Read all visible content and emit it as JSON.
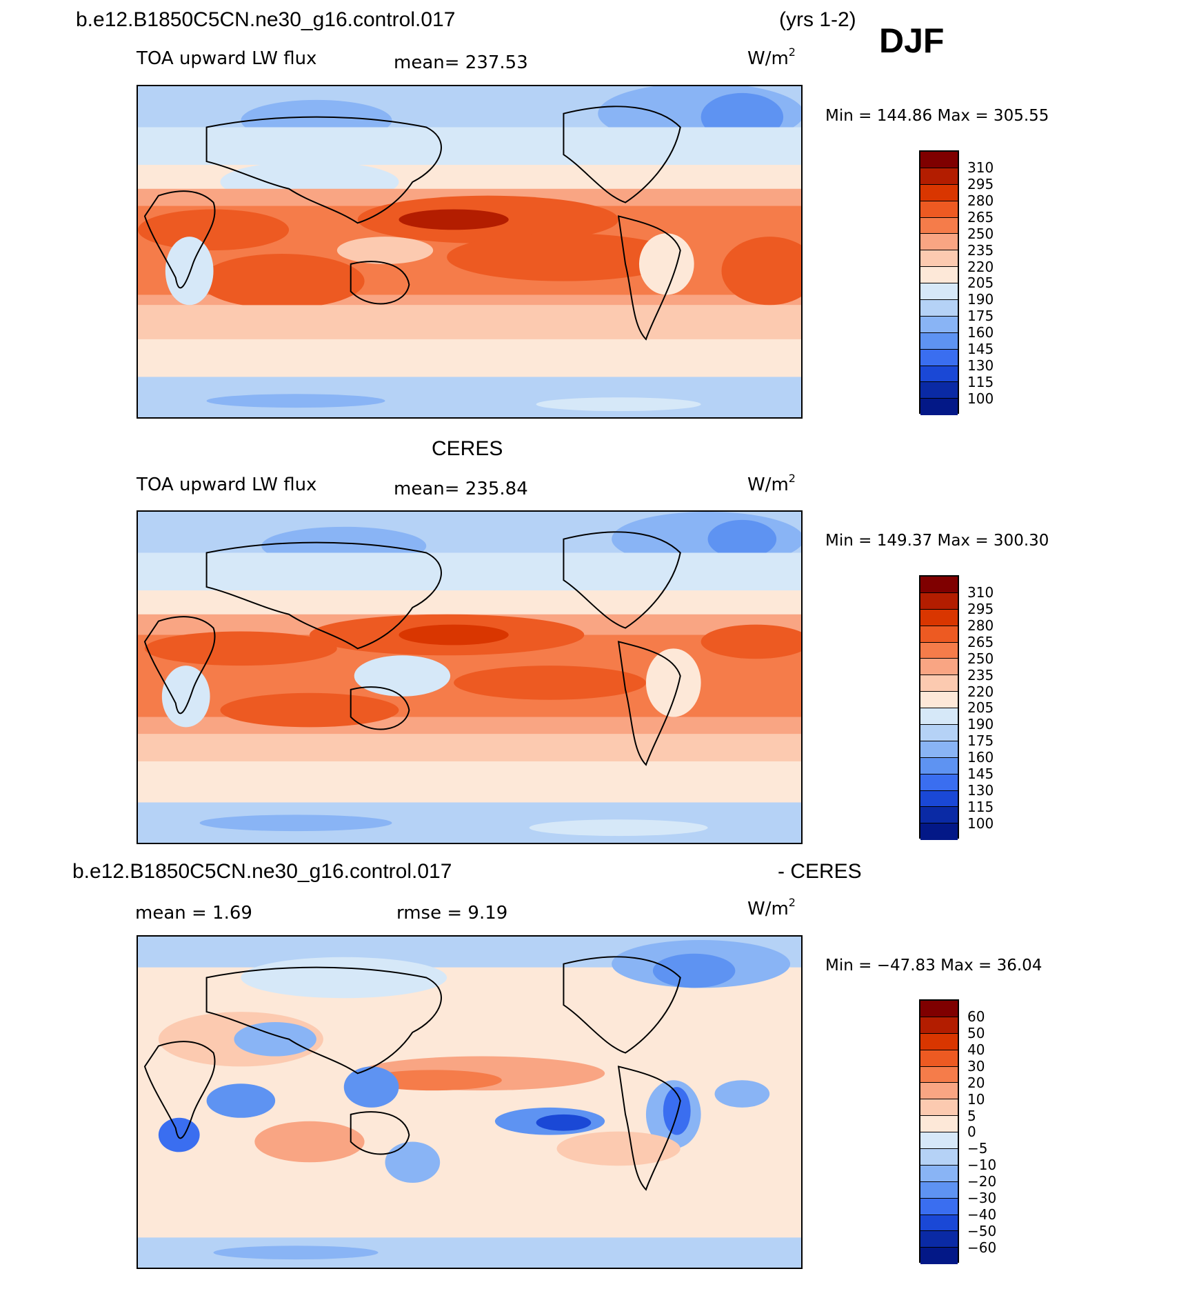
{
  "header": {
    "case_name": "b.e12.B1850C5CN.ne30_g16.control.017",
    "years": "(yrs 1-2)",
    "season": "DJF"
  },
  "panels": [
    {
      "id": "model",
      "subtitle": "",
      "variable": "TOA upward LW flux",
      "stat_text": "mean=  237.53",
      "units": "W/m",
      "units_sup": "2",
      "minmax": "Min  =  144.86  Max  =  305.55",
      "colorbar_labels": [
        "310",
        "295",
        "280",
        "265",
        "250",
        "235",
        "220",
        "205",
        "190",
        "175",
        "160",
        "145",
        "130",
        "115",
        "100"
      ]
    },
    {
      "id": "obs",
      "subtitle": "CERES",
      "variable": "TOA upward LW flux",
      "stat_text": "mean=  235.84",
      "units": "W/m",
      "units_sup": "2",
      "minmax": "Min  =  149.37  Max  =  300.30",
      "colorbar_labels": [
        "310",
        "295",
        "280",
        "265",
        "250",
        "235",
        "220",
        "205",
        "190",
        "175",
        "160",
        "145",
        "130",
        "115",
        "100"
      ]
    },
    {
      "id": "diff",
      "subtitle_left": "b.e12.B1850C5CN.ne30_g16.control.017",
      "subtitle_right": "- CERES",
      "mean_text": "mean  =     1.69",
      "rmse_text": "rmse  =     9.19",
      "units": "W/m",
      "units_sup": "2",
      "minmax": "Min  =  −47.83  Max  =    36.04",
      "colorbar_labels": [
        "60",
        "50",
        "40",
        "30",
        "20",
        "10",
        "5",
        "0",
        "−5",
        "−10",
        "−20",
        "−30",
        "−40",
        "−50",
        "−60"
      ]
    }
  ],
  "colors": {
    "levels": [
      "#7f0000",
      "#b31d00",
      "#d93600",
      "#ed5a22",
      "#f57c4a",
      "#f9a583",
      "#fccab0",
      "#fde8d8",
      "#d6e8f8",
      "#b5d2f6",
      "#89b4f5",
      "#5e93f2",
      "#3a6ef0",
      "#1a48d6",
      "#0a2aa5",
      "#031887"
    ],
    "land_outline": "#000000"
  }
}
